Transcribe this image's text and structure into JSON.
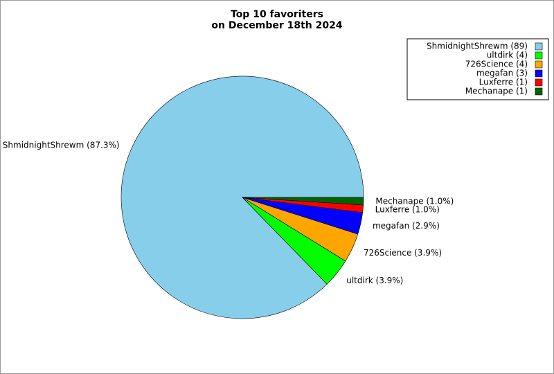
{
  "chart_data": {
    "type": "pie",
    "title": "Top 10 favoriters\non December 18th 2024",
    "values": [
      87.3,
      3.9,
      3.9,
      2.9,
      1.0,
      1.0
    ],
    "value_labels": [
      "ShmidnightShrewm (87.3%)",
      "ultdirk (3.9%)",
      "726Science (3.9%)",
      "megafan (2.9%)",
      "Luxferre (1.0%)",
      "Mechanape (1.0%)"
    ],
    "legend_labels": [
      "ShmidnightShrewm (89)",
      "ultdirk (4)",
      "726Science (4)",
      "megafan (3)",
      "Luxferre (1)",
      "Mechanape (1)"
    ],
    "colors": [
      "#87ceeb",
      "#00ff00",
      "#ffa500",
      "#0000ff",
      "#ff0000",
      "#006400"
    ],
    "legend": "upper right"
  }
}
